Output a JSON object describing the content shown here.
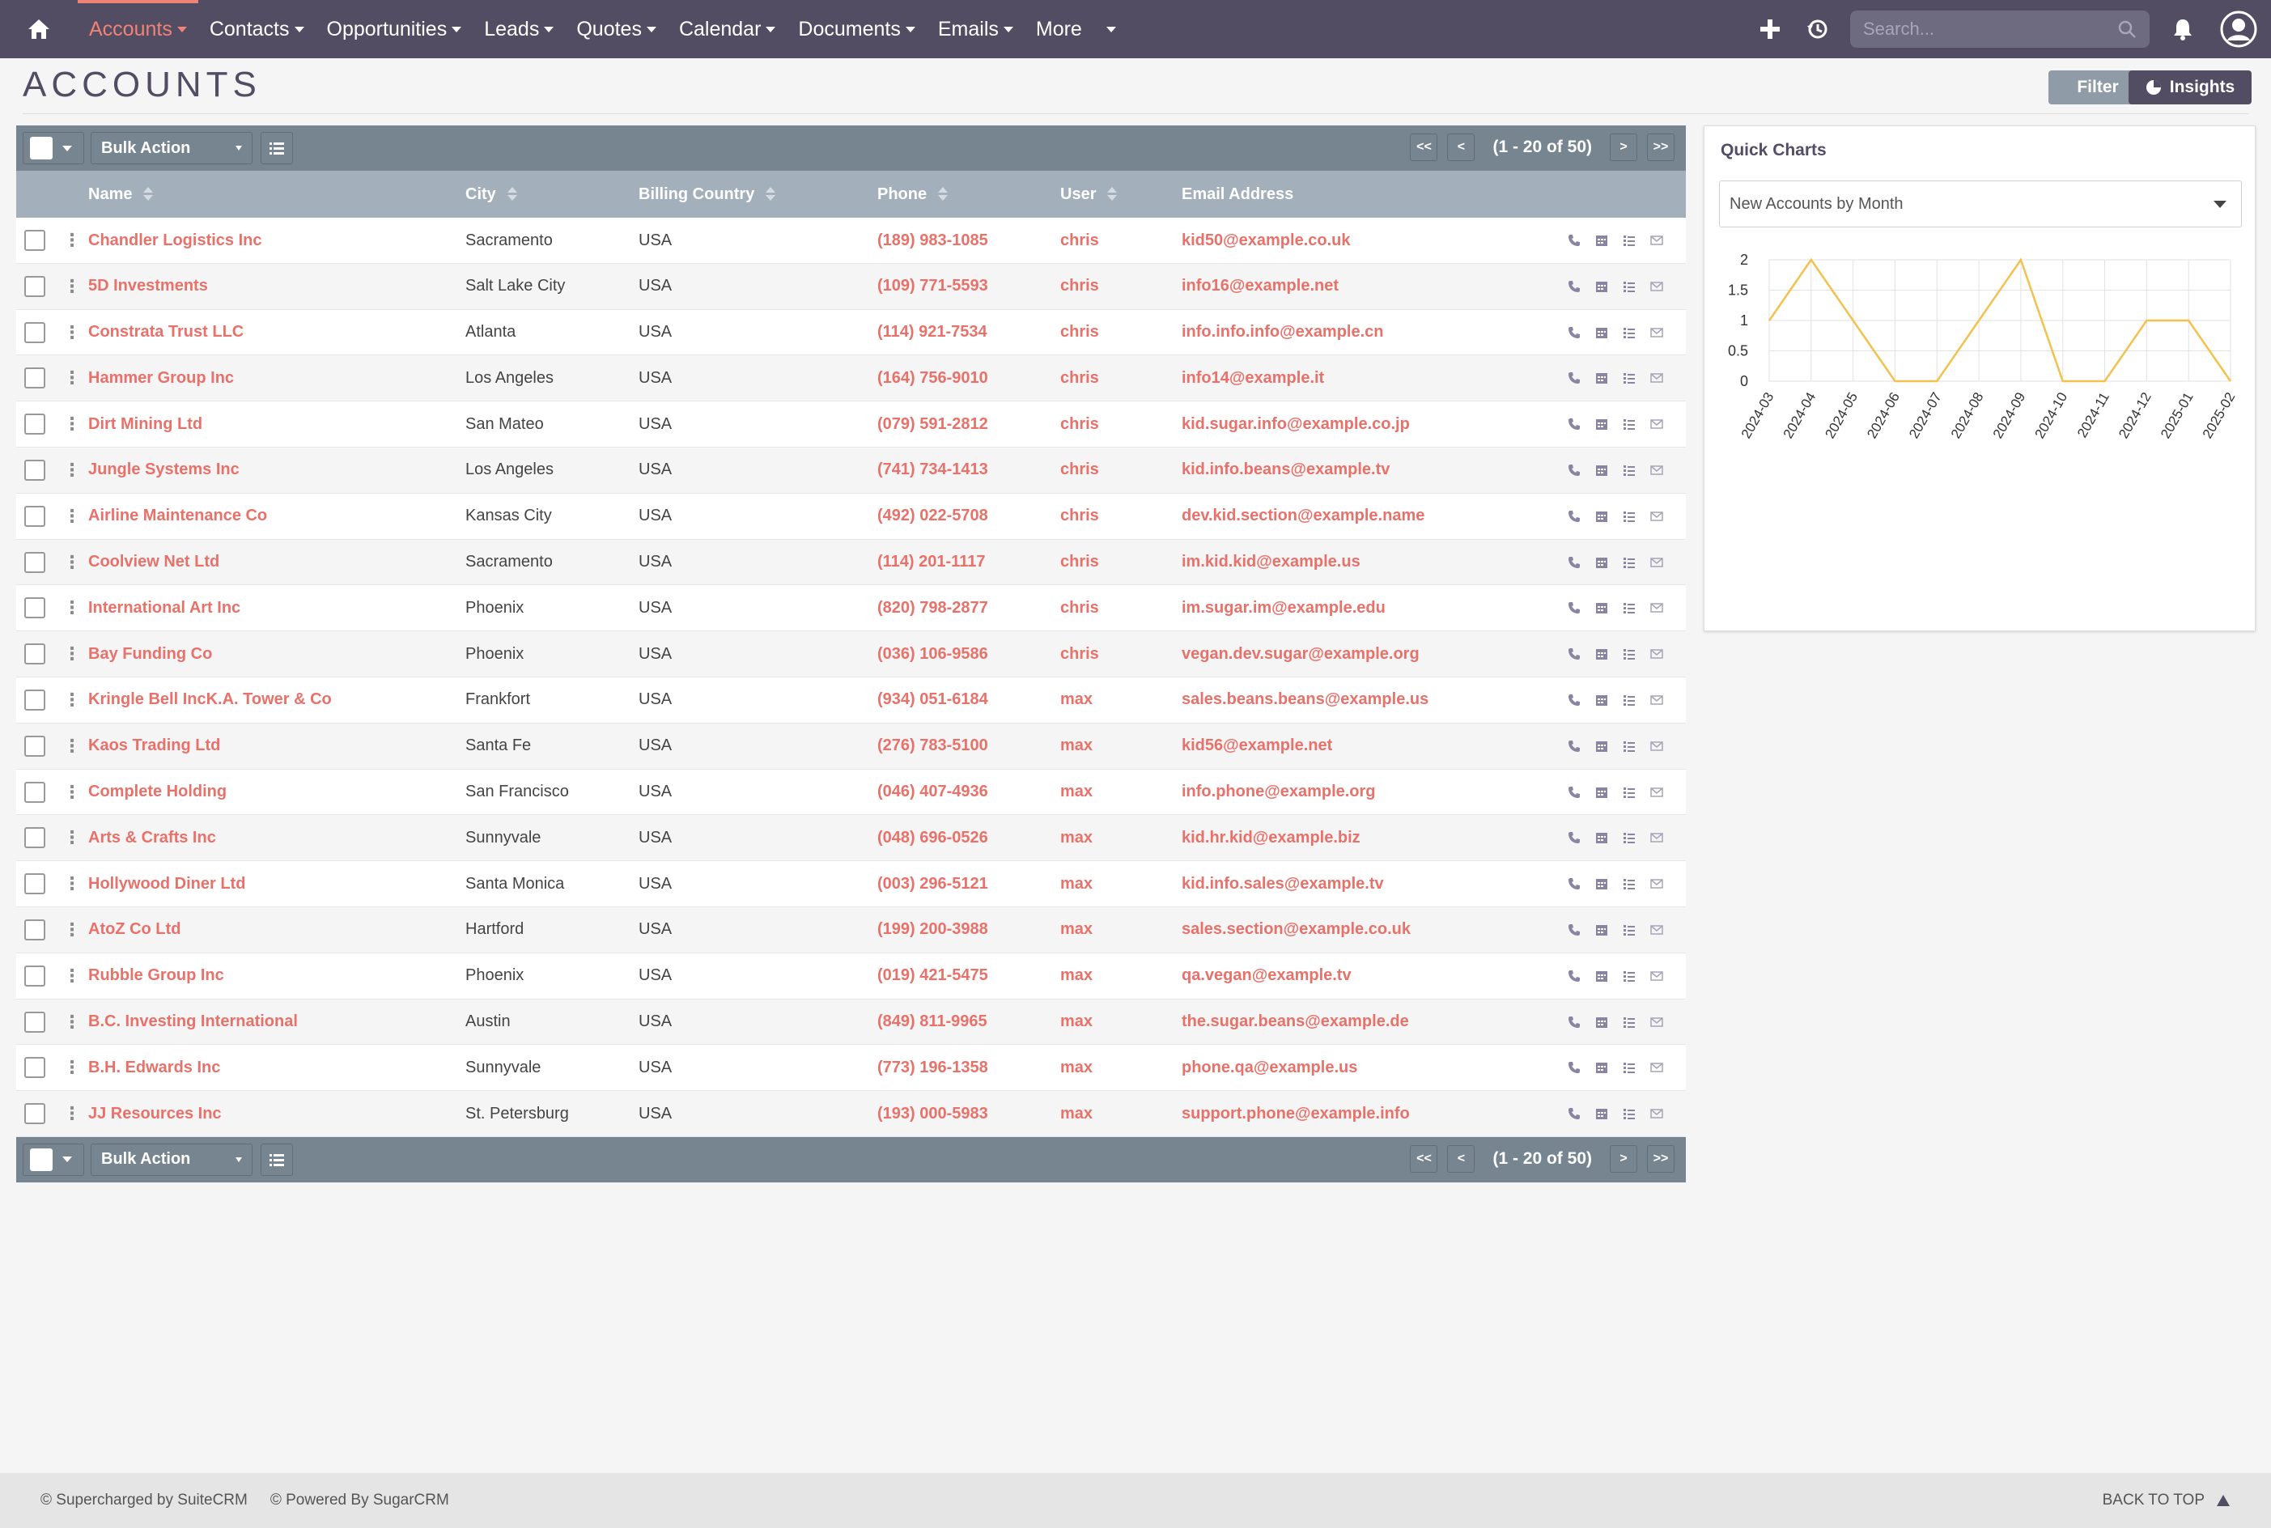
{
  "nav": {
    "items": [
      {
        "label": "Accounts",
        "active": true
      },
      {
        "label": "Contacts"
      },
      {
        "label": "Opportunities"
      },
      {
        "label": "Leads"
      },
      {
        "label": "Quotes"
      },
      {
        "label": "Calendar"
      },
      {
        "label": "Documents"
      },
      {
        "label": "Emails"
      },
      {
        "label": "More"
      }
    ],
    "search_placeholder": "Search..."
  },
  "page": {
    "title": "ACCOUNTS",
    "filter_label": "Filter",
    "insights_label": "Insights"
  },
  "list": {
    "bulk_action_label": "Bulk Action",
    "pager": {
      "first": "<<",
      "prev": "<",
      "count": "(1 - 20 of 50)",
      "next": ">",
      "last": ">>"
    },
    "columns": [
      "Name",
      "City",
      "Billing Country",
      "Phone",
      "User",
      "Email Address"
    ],
    "rows": [
      {
        "name": "Chandler Logistics Inc",
        "city": "Sacramento",
        "country": "USA",
        "phone": "(189) 983-1085",
        "user": "chris",
        "email": "kid50@example.co.uk"
      },
      {
        "name": "5D Investments",
        "city": "Salt Lake City",
        "country": "USA",
        "phone": "(109) 771-5593",
        "user": "chris",
        "email": "info16@example.net"
      },
      {
        "name": "Constrata Trust LLC",
        "city": "Atlanta",
        "country": "USA",
        "phone": "(114) 921-7534",
        "user": "chris",
        "email": "info.info.info@example.cn"
      },
      {
        "name": "Hammer Group Inc",
        "city": "Los Angeles",
        "country": "USA",
        "phone": "(164) 756-9010",
        "user": "chris",
        "email": "info14@example.it"
      },
      {
        "name": "Dirt Mining Ltd",
        "city": "San Mateo",
        "country": "USA",
        "phone": "(079) 591-2812",
        "user": "chris",
        "email": "kid.sugar.info@example.co.jp"
      },
      {
        "name": "Jungle Systems Inc",
        "city": "Los Angeles",
        "country": "USA",
        "phone": "(741) 734-1413",
        "user": "chris",
        "email": "kid.info.beans@example.tv"
      },
      {
        "name": "Airline Maintenance Co",
        "city": "Kansas City",
        "country": "USA",
        "phone": "(492) 022-5708",
        "user": "chris",
        "email": "dev.kid.section@example.name"
      },
      {
        "name": "Coolview Net Ltd",
        "city": "Sacramento",
        "country": "USA",
        "phone": "(114) 201-1117",
        "user": "chris",
        "email": "im.kid.kid@example.us"
      },
      {
        "name": "International Art Inc",
        "city": "Phoenix",
        "country": "USA",
        "phone": "(820) 798-2877",
        "user": "chris",
        "email": "im.sugar.im@example.edu"
      },
      {
        "name": "Bay Funding Co",
        "city": "Phoenix",
        "country": "USA",
        "phone": "(036) 106-9586",
        "user": "chris",
        "email": "vegan.dev.sugar@example.org"
      },
      {
        "name": "Kringle Bell IncK.A. Tower & Co",
        "city": "Frankfort",
        "country": "USA",
        "phone": "(934) 051-6184",
        "user": "max",
        "email": "sales.beans.beans@example.us"
      },
      {
        "name": "Kaos Trading Ltd",
        "city": "Santa Fe",
        "country": "USA",
        "phone": "(276) 783-5100",
        "user": "max",
        "email": "kid56@example.net"
      },
      {
        "name": "Complete Holding",
        "city": "San Francisco",
        "country": "USA",
        "phone": "(046) 407-4936",
        "user": "max",
        "email": "info.phone@example.org"
      },
      {
        "name": "Arts & Crafts Inc",
        "city": "Sunnyvale",
        "country": "USA",
        "phone": "(048) 696-0526",
        "user": "max",
        "email": "kid.hr.kid@example.biz"
      },
      {
        "name": "Hollywood Diner Ltd",
        "city": "Santa Monica",
        "country": "USA",
        "phone": "(003) 296-5121",
        "user": "max",
        "email": "kid.info.sales@example.tv"
      },
      {
        "name": "AtoZ Co Ltd",
        "city": "Hartford",
        "country": "USA",
        "phone": "(199) 200-3988",
        "user": "max",
        "email": "sales.section@example.co.uk"
      },
      {
        "name": "Rubble Group Inc",
        "city": "Phoenix",
        "country": "USA",
        "phone": "(019) 421-5475",
        "user": "max",
        "email": "qa.vegan@example.tv"
      },
      {
        "name": "B.C. Investing International",
        "city": "Austin",
        "country": "USA",
        "phone": "(849) 811-9965",
        "user": "max",
        "email": "the.sugar.beans@example.de"
      },
      {
        "name": "B.H. Edwards Inc",
        "city": "Sunnyvale",
        "country": "USA",
        "phone": "(773) 196-1358",
        "user": "max",
        "email": "phone.qa@example.us"
      },
      {
        "name": "JJ Resources Inc",
        "city": "St. Petersburg",
        "country": "USA",
        "phone": "(193) 000-5983",
        "user": "max",
        "email": "support.phone@example.info"
      }
    ]
  },
  "quick_charts": {
    "title": "Quick Charts",
    "selected": "New Accounts by Month"
  },
  "chart_data": {
    "type": "line",
    "title": "",
    "x": [
      "2024-03",
      "2024-04",
      "2024-05",
      "2024-06",
      "2024-07",
      "2024-08",
      "2024-09",
      "2024-10",
      "2024-11",
      "2024-12",
      "2025-01",
      "2025-02"
    ],
    "series": [
      {
        "values": [
          1,
          2,
          1,
          0,
          0,
          1,
          2,
          0,
          0,
          1,
          1,
          0
        ]
      }
    ],
    "y_ticks": [
      "0",
      "0.5",
      "1",
      "1.5",
      "2"
    ],
    "ylim": [
      0,
      2
    ],
    "grid": true,
    "color": "#f2c14e"
  },
  "footer": {
    "left1": "© Supercharged by SuiteCRM",
    "left2": "© Powered By SugarCRM",
    "back_to_top": "BACK TO TOP"
  },
  "colors": {
    "navbar": "#534d64",
    "accent": "#e8716a",
    "toolbar": "#778591",
    "header": "#a3b0bc"
  }
}
